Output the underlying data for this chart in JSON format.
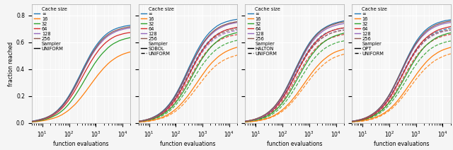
{
  "panels": [
    {
      "sampler_solid": "UNIFORM",
      "sampler_dashed": null
    },
    {
      "sampler_solid": "SOBOL",
      "sampler_dashed": "UNIFORM"
    },
    {
      "sampler_solid": "HALTON",
      "sampler_dashed": "UNIFORM"
    },
    {
      "sampler_solid": "OPT",
      "sampler_dashed": "UNIFORM"
    }
  ],
  "cache_labels": [
    "∞",
    "16",
    "32",
    "64",
    "128",
    "256"
  ],
  "cache_colors": [
    "#1f77b4",
    "#ff7f0e",
    "#2ca02c",
    "#d62728",
    "#9467bd",
    "#8c564b"
  ],
  "xlabel": "function evaluations",
  "ylabel": "fraction reached",
  "ylim": [
    0.0,
    0.88
  ],
  "xlim_log": [
    4,
    20000
  ],
  "background": "#f5f5f5",
  "grid_color": "#ffffff",
  "figsize": [
    6.4,
    2.12
  ],
  "dpi": 100,
  "yticks": [
    0.0,
    0.2,
    0.4,
    0.6,
    0.8
  ],
  "xtick_labels": [
    "10¹",
    "10²",
    "10³",
    "10⁴"
  ]
}
